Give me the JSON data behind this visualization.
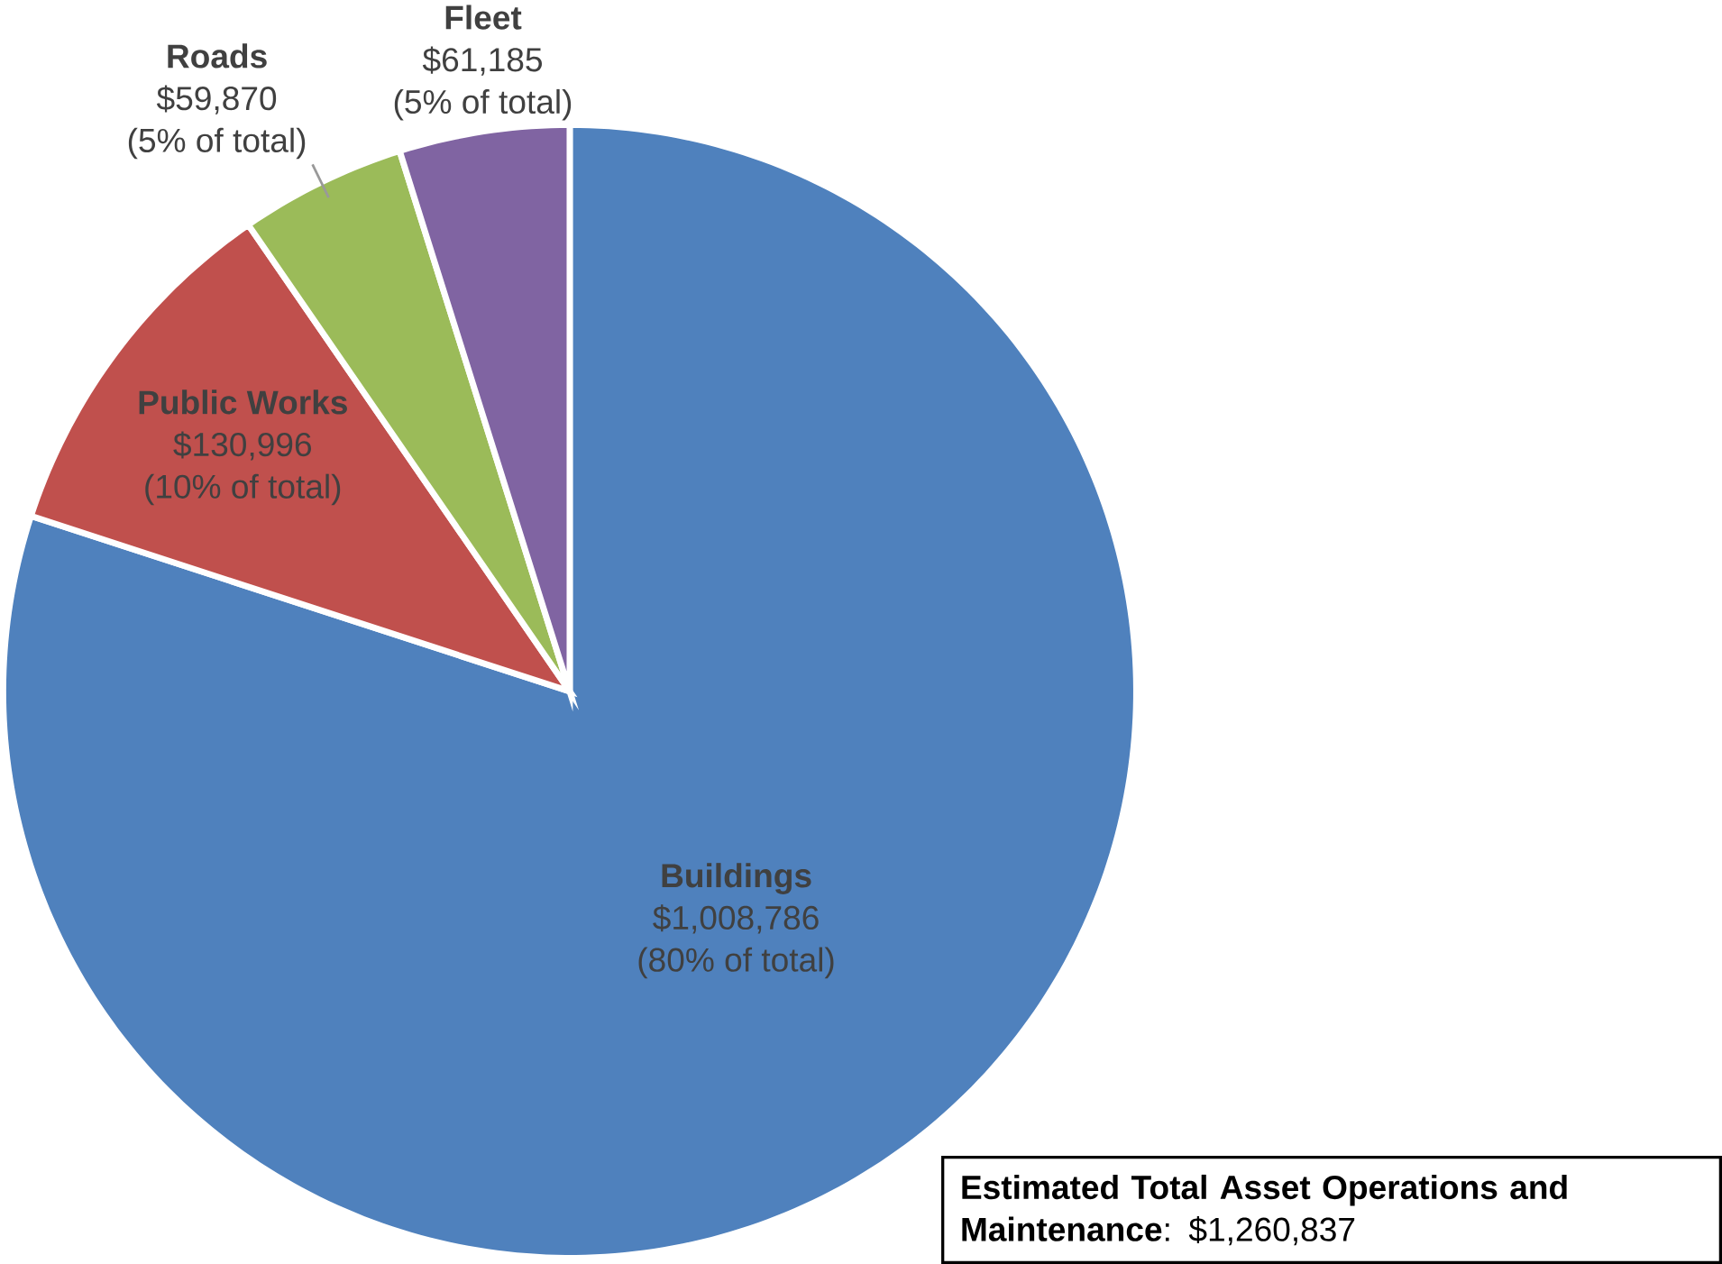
{
  "chart_data": {
    "type": "pie",
    "categories": [
      "Buildings",
      "Public Works",
      "Roads",
      "Fleet"
    ],
    "values": [
      1008786,
      130996,
      59870,
      61185
    ],
    "colors": [
      "#4f81bd",
      "#c0504d",
      "#9bbb59",
      "#8064a2"
    ],
    "value_labels": [
      "$1,008,786",
      "$130,996",
      "$59,870",
      "$61,185"
    ],
    "annotations": [
      "**Estimated Total Asset Operations and Maintenance**: $1,260,837",
      "(80% of total)",
      "(10% of total)",
      "(5% of total)",
      "(5% of total)"
    ]
  }
}
